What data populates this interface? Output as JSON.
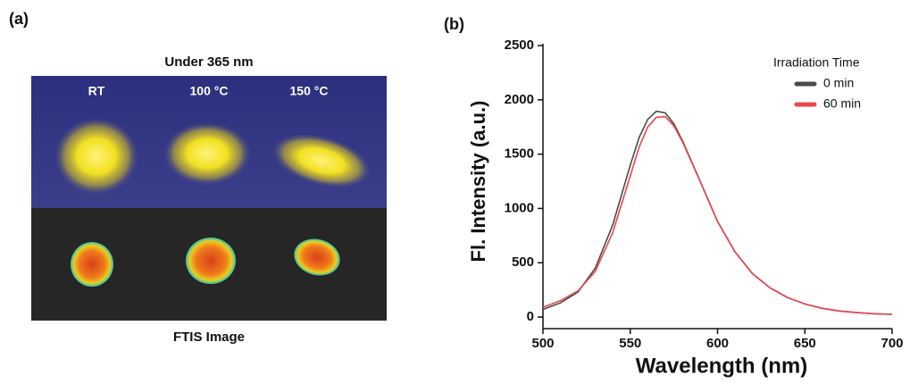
{
  "panel_a": {
    "label": "(a)",
    "title": "Under 365 nm",
    "columns": [
      "RT",
      "100 °C",
      "150 °C"
    ],
    "caption": "FTIS Image"
  },
  "chart_data": {
    "type": "line",
    "label": "(b)",
    "xlabel": "Wavelength (nm)",
    "ylabel": "Fl. Intensity (a.u.)",
    "x": [
      500,
      510,
      520,
      530,
      540,
      550,
      555,
      560,
      565,
      570,
      575,
      580,
      590,
      600,
      610,
      620,
      630,
      640,
      650,
      660,
      670,
      680,
      690,
      700
    ],
    "series": [
      {
        "name": "0 min",
        "color": "#4a4a4a",
        "values": [
          70,
          130,
          230,
          450,
          850,
          1400,
          1650,
          1820,
          1895,
          1880,
          1780,
          1620,
          1250,
          880,
          600,
          400,
          270,
          180,
          120,
          80,
          55,
          40,
          30,
          25
        ]
      },
      {
        "name": "60 min",
        "color": "#e8474f",
        "values": [
          90,
          150,
          240,
          420,
          780,
          1300,
          1560,
          1750,
          1840,
          1845,
          1760,
          1610,
          1250,
          880,
          600,
          400,
          270,
          180,
          120,
          80,
          55,
          40,
          30,
          25
        ]
      }
    ],
    "xlim": [
      500,
      700
    ],
    "xticks": [
      500,
      550,
      600,
      650,
      700
    ],
    "ylim": [
      0,
      2500
    ],
    "yticks": [
      0,
      500,
      1000,
      1500,
      2000,
      2500
    ],
    "legend_title": "Irradiation Time",
    "legend": "upper right"
  }
}
